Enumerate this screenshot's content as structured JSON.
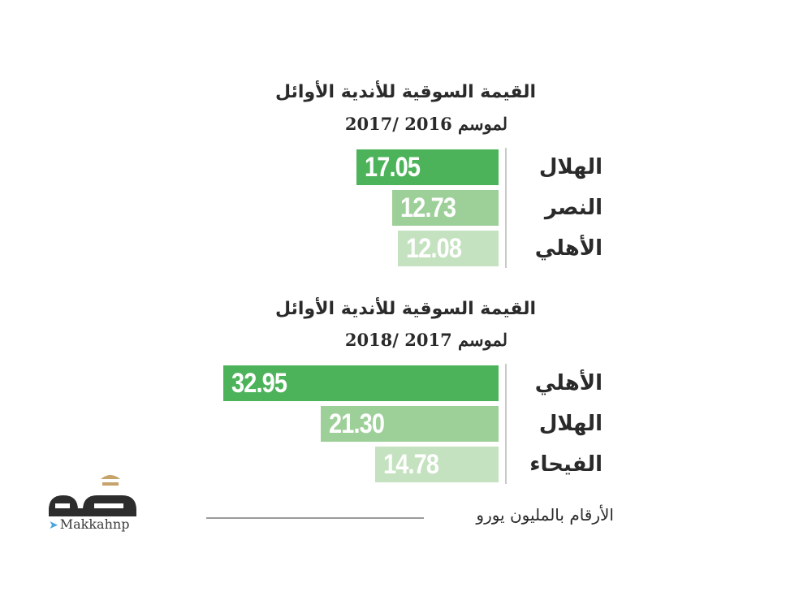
{
  "colors": {
    "rank1": "#4db35a",
    "rank2": "#9dcf98",
    "rank3": "#c4e2bf",
    "text": "#2a2a2a",
    "axis": "#c9c9c9"
  },
  "chart_data": [
    {
      "type": "bar",
      "orientation": "horizontal",
      "title": "القيمة السوقية للأندية الأوائل",
      "subtitle": "لموسم 2016 /2017",
      "categories": [
        "الهلال",
        "النصر",
        "الأهلي"
      ],
      "values": [
        17.05,
        12.73,
        12.08
      ],
      "value_labels": [
        "17.05",
        "12.73",
        "12.08"
      ],
      "xlim": [
        0,
        35
      ],
      "grid": false,
      "legend": "none"
    },
    {
      "type": "bar",
      "orientation": "horizontal",
      "title": "القيمة السوقية للأندية الأوائل",
      "subtitle": "لموسم 2017 /2018",
      "categories": [
        "الأهلي",
        "الهلال",
        "الفيحاء"
      ],
      "values": [
        32.95,
        21.3,
        14.78
      ],
      "value_labels": [
        "32.95",
        "21.30",
        "14.78"
      ],
      "xlim": [
        0,
        35
      ],
      "grid": false,
      "legend": "none"
    }
  ],
  "unit_note": "الأرقام بالمليون يورو",
  "logo": {
    "name": "مكة",
    "handle": "Makkahnp",
    "icon": "bird-icon"
  }
}
